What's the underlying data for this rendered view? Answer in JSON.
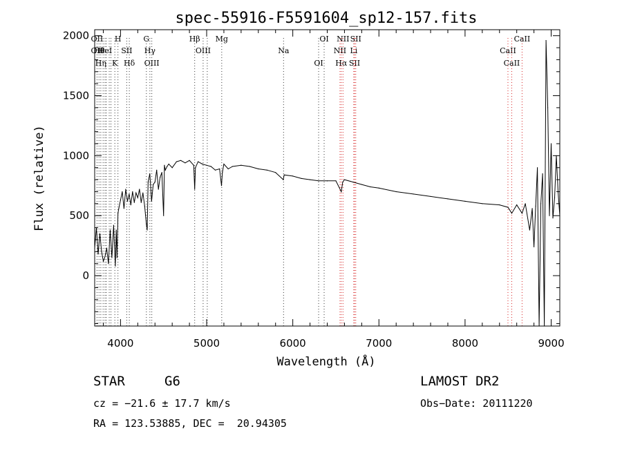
{
  "chart_data": {
    "type": "line",
    "title": "spec-55916-F5591604_sp12-157.fits",
    "xlabel": "Wavelength (Å)",
    "ylabel": "Flux (relative)",
    "xlim": [
      3700,
      9100
    ],
    "ylim": [
      -420,
      2050
    ],
    "x_ticks": [
      4000,
      5000,
      6000,
      7000,
      8000,
      9000
    ],
    "y_ticks": [
      0,
      500,
      1000,
      1500,
      2000
    ],
    "grid": false,
    "series": [
      {
        "x": [
          3700,
          3720,
          3740,
          3760,
          3780,
          3800,
          3820,
          3840,
          3860,
          3880,
          3900,
          3920,
          3940,
          3950,
          3960,
          3970,
          3980,
          4000,
          4020,
          4040,
          4060,
          4080,
          4100,
          4120,
          4140,
          4160,
          4180,
          4200,
          4220,
          4240,
          4260,
          4280,
          4300,
          4310,
          4320,
          4340,
          4360,
          4380,
          4400,
          4420,
          4440,
          4460,
          4480,
          4500,
          4510,
          4520,
          4540,
          4560,
          4600,
          4650,
          4700,
          4750,
          4800,
          4850,
          4861,
          4870,
          4900,
          4950,
          5000,
          5050,
          5100,
          5150,
          5172,
          5183,
          5200,
          5250,
          5300,
          5400,
          5500,
          5600,
          5700,
          5800,
          5890,
          5900,
          6000,
          6100,
          6200,
          6300,
          6400,
          6500,
          6563,
          6580,
          6600,
          6700,
          6800,
          6900,
          7000,
          7200,
          7400,
          7600,
          7800,
          8000,
          8200,
          8400,
          8498,
          8542,
          8600,
          8662,
          8700,
          8750,
          8780,
          8800,
          8820,
          8840,
          8860,
          8880,
          8900,
          8920,
          8940,
          8960,
          8980,
          9000,
          9020,
          9040,
          9060,
          9080,
          9100
        ],
        "y": [
          230,
          400,
          180,
          350,
          200,
          120,
          160,
          230,
          100,
          380,
          150,
          420,
          80,
          380,
          150,
          520,
          560,
          630,
          700,
          560,
          720,
          620,
          680,
          590,
          700,
          610,
          690,
          650,
          720,
          610,
          690,
          580,
          430,
          380,
          780,
          850,
          620,
          760,
          780,
          880,
          720,
          820,
          860,
          500,
          920,
          880,
          910,
          930,
          900,
          950,
          960,
          940,
          960,
          920,
          720,
          900,
          950,
          930,
          920,
          910,
          880,
          890,
          750,
          860,
          930,
          890,
          910,
          920,
          910,
          890,
          880,
          860,
          800,
          840,
          830,
          810,
          800,
          790,
          790,
          790,
          700,
          780,
          800,
          780,
          760,
          740,
          730,
          700,
          680,
          660,
          640,
          620,
          600,
          590,
          570,
          520,
          590,
          520,
          600,
          380,
          560,
          240,
          580,
          900,
          -420,
          600,
          850,
          -420,
          1960,
          1400,
          500,
          1100,
          480,
          650,
          1000,
          700,
          500
        ]
      }
    ],
    "spectral_lines": [
      {
        "x": 3727,
        "labels": [
          "OII",
          "OII"
        ]
      },
      {
        "x": 3750,
        "labels": [
          "Hθ"
        ]
      },
      {
        "x": 3771,
        "labels": [
          "Hη"
        ]
      },
      {
        "x": 3798,
        "labels": [
          ""
        ]
      },
      {
        "x": 3820,
        "labels": [
          "HeI"
        ]
      },
      {
        "x": 3835,
        "labels": [
          ""
        ]
      },
      {
        "x": 3869,
        "labels": [
          ""
        ]
      },
      {
        "x": 3889,
        "labels": [
          ""
        ]
      },
      {
        "x": 3934,
        "labels": [
          "K"
        ]
      },
      {
        "x": 3970,
        "labels": [
          "H"
        ]
      },
      {
        "x": 4072,
        "labels": [
          "SII"
        ]
      },
      {
        "x": 4102,
        "labels": [
          "Hδ"
        ]
      },
      {
        "x": 4300,
        "labels": [
          "G"
        ]
      },
      {
        "x": 4341,
        "labels": [
          "Hγ"
        ]
      },
      {
        "x": 4363,
        "labels": [
          "OIII"
        ]
      },
      {
        "x": 4861,
        "labels": [
          "Hβ"
        ]
      },
      {
        "x": 4959,
        "labels": [
          "OIII"
        ]
      },
      {
        "x": 5007,
        "labels": [
          ""
        ]
      },
      {
        "x": 5175,
        "labels": [
          "Mg"
        ]
      },
      {
        "x": 5893,
        "labels": [
          "Na"
        ]
      },
      {
        "x": 6300,
        "labels": [
          "OI"
        ]
      },
      {
        "x": 6364,
        "labels": [
          "OI"
        ]
      },
      {
        "x": 6548,
        "labels": [
          "NII"
        ]
      },
      {
        "x": 6563,
        "labels": [
          "Hα"
        ]
      },
      {
        "x": 6583,
        "labels": [
          "NII"
        ]
      },
      {
        "x": 6708,
        "labels": [
          "Li"
        ]
      },
      {
        "x": 6717,
        "labels": [
          "SII"
        ]
      },
      {
        "x": 6731,
        "labels": [
          "SII"
        ]
      },
      {
        "x": 8498,
        "labels": [
          "CaII"
        ]
      },
      {
        "x": 8542,
        "labels": [
          "CaII"
        ]
      },
      {
        "x": 8662,
        "labels": [
          "CaII"
        ]
      }
    ]
  },
  "info": {
    "object_class": "STAR",
    "subclass": "G6",
    "survey": "LAMOST DR2",
    "redshift": "cz = −21.6 ± 17.7 km/s",
    "obs_date": "Obs−Date: 20111220",
    "coords": "RA = 123.53885, DEC =  20.94305"
  },
  "colors": {
    "spectrum": "#000000",
    "line_markers": "#d62020"
  }
}
